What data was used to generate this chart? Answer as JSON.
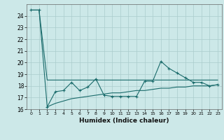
{
  "title": "",
  "xlabel": "Humidex (Indice chaleur)",
  "ylabel": "",
  "bg_color": "#cce8e8",
  "grid_color": "#aacccc",
  "line_color": "#1a6b6b",
  "x_values": [
    0,
    1,
    2,
    3,
    4,
    5,
    6,
    7,
    8,
    9,
    10,
    11,
    12,
    13,
    14,
    15,
    16,
    17,
    18,
    19,
    20,
    21,
    22,
    23
  ],
  "main_line": [
    24.5,
    24.5,
    16.2,
    17.5,
    17.6,
    18.3,
    17.6,
    17.9,
    18.6,
    17.2,
    17.1,
    17.1,
    17.1,
    17.1,
    18.4,
    18.4,
    20.1,
    19.5,
    19.1,
    18.7,
    18.3,
    18.3,
    18.0,
    18.1
  ],
  "lower_line": [
    null,
    null,
    16.2,
    16.5,
    16.7,
    16.9,
    17.0,
    17.1,
    17.2,
    17.3,
    17.4,
    17.4,
    17.5,
    17.6,
    17.6,
    17.7,
    17.8,
    17.8,
    17.9,
    17.9,
    18.0,
    18.0,
    18.0,
    18.1
  ],
  "upper_line": [
    24.5,
    24.5,
    18.5,
    18.5,
    18.5,
    18.5,
    18.5,
    18.5,
    18.5,
    18.5,
    18.5,
    18.5,
    18.5,
    18.5,
    18.5,
    18.5,
    18.5,
    18.5,
    18.5,
    18.5,
    18.5,
    18.5,
    18.5,
    18.5
  ],
  "ylim": [
    16,
    25
  ],
  "yticks": [
    16,
    17,
    18,
    19,
    20,
    21,
    22,
    23,
    24
  ],
  "xlim": [
    -0.5,
    23.5
  ]
}
